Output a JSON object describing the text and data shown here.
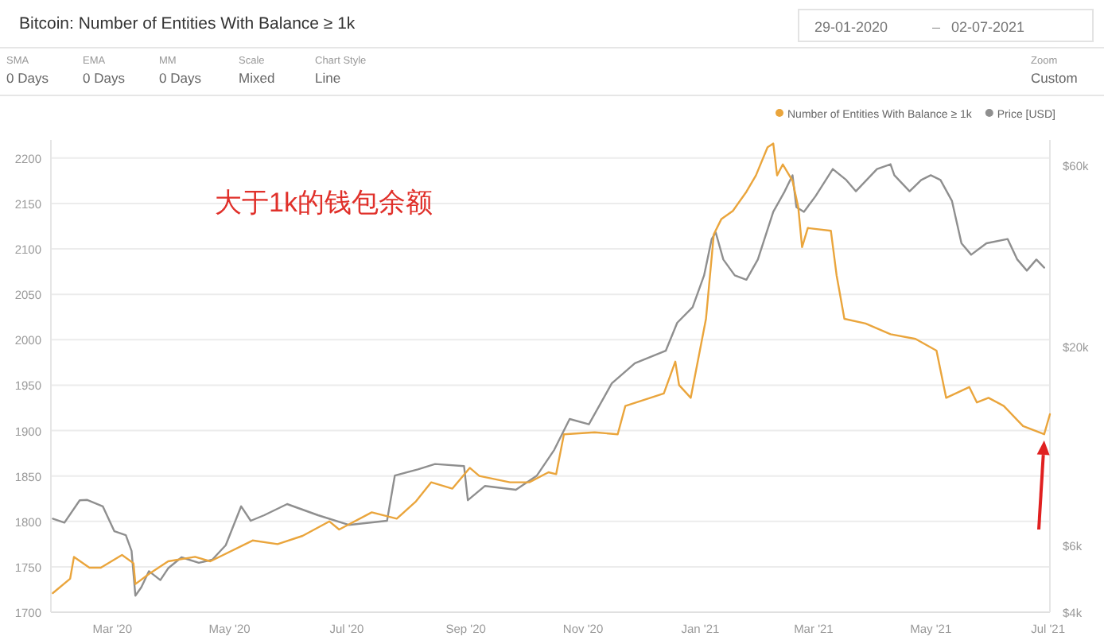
{
  "chart_data": {
    "type": "line",
    "title": "Bitcoin: Number of Entities With Balance ≥ 1k",
    "annotations": [
      "29-01-2020",
      "–",
      "02-07-2021",
      "SMA",
      "0 Days",
      "EMA",
      "0 Days",
      "MM",
      "0 Days",
      "Scale",
      "Mixed",
      "Chart Style",
      "Line",
      "Zoom",
      "Custom",
      "大于1k的钱包余额"
    ],
    "series": [
      {
        "name": "Number of Entities With Balance ≥ 1k",
        "color": "#eaa53c",
        "x": [
          "2020-01-30",
          "2020-02-08",
          "2020-02-10",
          "2020-02-18",
          "2020-02-24",
          "2020-03-06",
          "2020-03-12",
          "2020-03-13",
          "2020-03-20",
          "2020-03-30",
          "2020-04-13",
          "2020-04-21",
          "2020-05-13",
          "2020-05-26",
          "2020-06-08",
          "2020-06-22",
          "2020-06-27",
          "2020-07-14",
          "2020-07-27",
          "2020-08-06",
          "2020-08-14",
          "2020-08-25",
          "2020-09-03",
          "2020-09-08",
          "2020-09-24",
          "2020-10-04",
          "2020-10-14",
          "2020-10-18",
          "2020-10-22",
          "2020-11-07",
          "2020-11-19",
          "2020-11-23",
          "2020-12-13",
          "2020-12-19",
          "2020-12-21",
          "2020-12-27",
          "2021-01-04",
          "2021-01-08",
          "2021-01-12",
          "2021-01-18",
          "2021-01-25",
          "2021-01-30",
          "2021-02-05",
          "2021-02-08",
          "2021-02-10",
          "2021-02-13",
          "2021-02-18",
          "2021-02-21",
          "2021-02-23",
          "2021-02-26",
          "2021-03-10",
          "2021-03-13",
          "2021-03-17",
          "2021-03-28",
          "2021-04-10",
          "2021-04-23",
          "2021-05-04",
          "2021-05-09",
          "2021-05-21",
          "2021-05-25",
          "2021-05-31",
          "2021-06-08",
          "2021-06-18",
          "2021-06-29",
          "2021-07-02"
        ],
        "values": [
          1721,
          1737,
          1761,
          1749,
          1749,
          1763,
          1754,
          1731,
          1742,
          1756,
          1761,
          1756,
          1779,
          1775,
          1784,
          1800,
          1791,
          1810,
          1803,
          1822,
          1843,
          1836,
          1859,
          1850,
          1843,
          1843,
          1854,
          1852,
          1896,
          1898,
          1896,
          1927,
          1941,
          1976,
          1950,
          1936,
          2023,
          2116,
          2133,
          2142,
          2163,
          2181,
          2212,
          2216,
          2181,
          2193,
          2175,
          2146,
          2102,
          2123,
          2120,
          2071,
          2023,
          2018,
          2006,
          2001,
          1988,
          1936,
          1948,
          1931,
          1936,
          1927,
          1905,
          1896,
          1918
        ]
      },
      {
        "name": "Price [USD]",
        "color": "#8f8f8f",
        "axis": "y2",
        "x": [
          "2020-01-30",
          "2020-02-05",
          "2020-02-13",
          "2020-02-17",
          "2020-02-25",
          "2020-03-02",
          "2020-03-08",
          "2020-03-11",
          "2020-03-13",
          "2020-03-16",
          "2020-03-20",
          "2020-03-26",
          "2020-03-30",
          "2020-04-06",
          "2020-04-15",
          "2020-04-22",
          "2020-04-29",
          "2020-05-07",
          "2020-05-12",
          "2020-05-19",
          "2020-05-31",
          "2020-06-16",
          "2020-07-02",
          "2020-07-22",
          "2020-07-26",
          "2020-08-07",
          "2020-08-16",
          "2020-08-31",
          "2020-09-02",
          "2020-09-11",
          "2020-09-27",
          "2020-10-08",
          "2020-10-17",
          "2020-10-25",
          "2020-11-04",
          "2020-11-16",
          "2020-11-28",
          "2020-12-14",
          "2020-12-20",
          "2020-12-28",
          "2021-01-03",
          "2021-01-07",
          "2021-01-09",
          "2021-01-13",
          "2021-01-19",
          "2021-01-25",
          "2021-01-31",
          "2021-02-08",
          "2021-02-14",
          "2021-02-18",
          "2021-02-20",
          "2021-02-24",
          "2021-03-02",
          "2021-03-11",
          "2021-03-18",
          "2021-03-23",
          "2021-04-03",
          "2021-04-10",
          "2021-04-12",
          "2021-04-20",
          "2021-04-26",
          "2021-05-01",
          "2021-05-06",
          "2021-05-12",
          "2021-05-17",
          "2021-05-22",
          "2021-05-30",
          "2021-06-10",
          "2021-06-15",
          "2021-06-20",
          "2021-06-25",
          "2021-06-29"
        ],
        "values": [
          7050,
          6880,
          7880,
          7900,
          7600,
          6530,
          6380,
          5800,
          4420,
          4650,
          5130,
          4860,
          5220,
          5580,
          5400,
          5500,
          6000,
          7600,
          6960,
          7200,
          7700,
          7200,
          6790,
          6960,
          9150,
          9500,
          9820,
          9700,
          7880,
          8600,
          8400,
          9150,
          10700,
          12900,
          12500,
          16000,
          18100,
          19500,
          23100,
          25400,
          30800,
          38400,
          40000,
          33900,
          30800,
          30000,
          33900,
          45300,
          51300,
          56500,
          46600,
          45300,
          49800,
          58700,
          54900,
          51300,
          58700,
          60400,
          56500,
          51300,
          54900,
          56500,
          54900,
          48400,
          37400,
          34900,
          37400,
          38400,
          33900,
          31700,
          33900,
          32300
        ]
      }
    ],
    "xlim": [
      "2020-01-29",
      "2021-07-02"
    ],
    "xticks": [
      {
        "value": "2020-03-01",
        "label": "Mar '20"
      },
      {
        "value": "2020-05-01",
        "label": "May '20"
      },
      {
        "value": "2020-07-01",
        "label": "Jul '20"
      },
      {
        "value": "2020-09-01",
        "label": "Sep '20"
      },
      {
        "value": "2020-11-01",
        "label": "Nov '20"
      },
      {
        "value": "2021-01-01",
        "label": "Jan '21"
      },
      {
        "value": "2021-03-01",
        "label": "Mar '21"
      },
      {
        "value": "2021-05-01",
        "label": "May '21"
      },
      {
        "value": "2021-07-01",
        "label": "Jul '21"
      }
    ],
    "ylim": [
      1700,
      2220
    ],
    "yticks": [
      1700,
      1750,
      1800,
      1850,
      1900,
      1950,
      2000,
      2050,
      2100,
      2150,
      2200
    ],
    "y2lim": [
      4000,
      70000
    ],
    "log": "y2",
    "y2ticks": [
      {
        "value": 4000,
        "label": "$4k"
      },
      {
        "value": 6000,
        "label": "$6k"
      },
      {
        "value": 20000,
        "label": "$20k"
      },
      {
        "value": 60000,
        "label": "$60k"
      }
    ],
    "grid": "y",
    "legend": "top right",
    "marker": "none",
    "line_style": "solid"
  }
}
